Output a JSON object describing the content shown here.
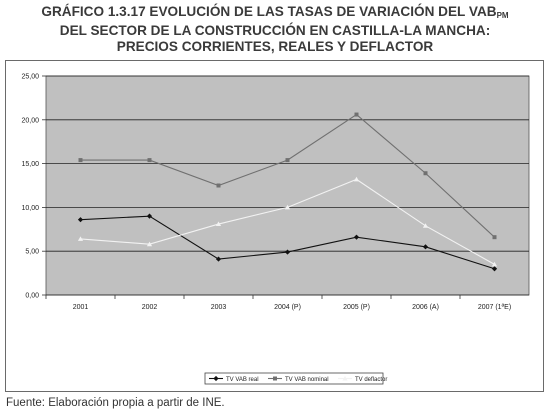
{
  "header": {
    "title_line1_main": "GRÁFICO 1.3.17 EVOLUCIÓN DE LAS TASAS DE VARIACIÓN DEL VAB",
    "title_line1_sub": "PM",
    "title_line2": "DEL SECTOR DE LA CONSTRUCCIÓN EN CASTILLA-LA MANCHA:",
    "title_line3": "PRECIOS CORRIENTES, REALES  Y DEFLACTOR"
  },
  "footer": {
    "source": "Fuente: Elaboración propia a partir de INE."
  },
  "colors": {
    "plot_background": "#c0c0c0",
    "gridline": "#222222",
    "series_real": "#111111",
    "series_nominal": "#707070",
    "series_deflactor": "#f2f2f2"
  },
  "chart_data": {
    "type": "line",
    "categories": [
      "2001",
      "2002",
      "2003",
      "2004 (P)",
      "2005 (P)",
      "2006 (A)",
      "2007 (1ªE)"
    ],
    "ylim": [
      0,
      25
    ],
    "y_ticks": [
      "0,00",
      "5,00",
      "10,00",
      "15,00",
      "20,00",
      "25,00"
    ],
    "grid": true,
    "legend_position": "bottom",
    "series": [
      {
        "name": "TV VAB real",
        "marker": "diamond",
        "color": "#111111",
        "values": [
          8.6,
          9.0,
          4.1,
          4.9,
          6.6,
          5.5,
          3.0
        ]
      },
      {
        "name": "TV VAB nominal",
        "marker": "square",
        "color": "#707070",
        "values": [
          15.4,
          15.4,
          12.5,
          15.4,
          20.6,
          13.9,
          6.6
        ]
      },
      {
        "name": "TV deflactor",
        "marker": "triangle",
        "color": "#f2f2f2",
        "values": [
          6.4,
          5.8,
          8.1,
          10.0,
          13.2,
          7.9,
          3.5
        ]
      }
    ]
  }
}
